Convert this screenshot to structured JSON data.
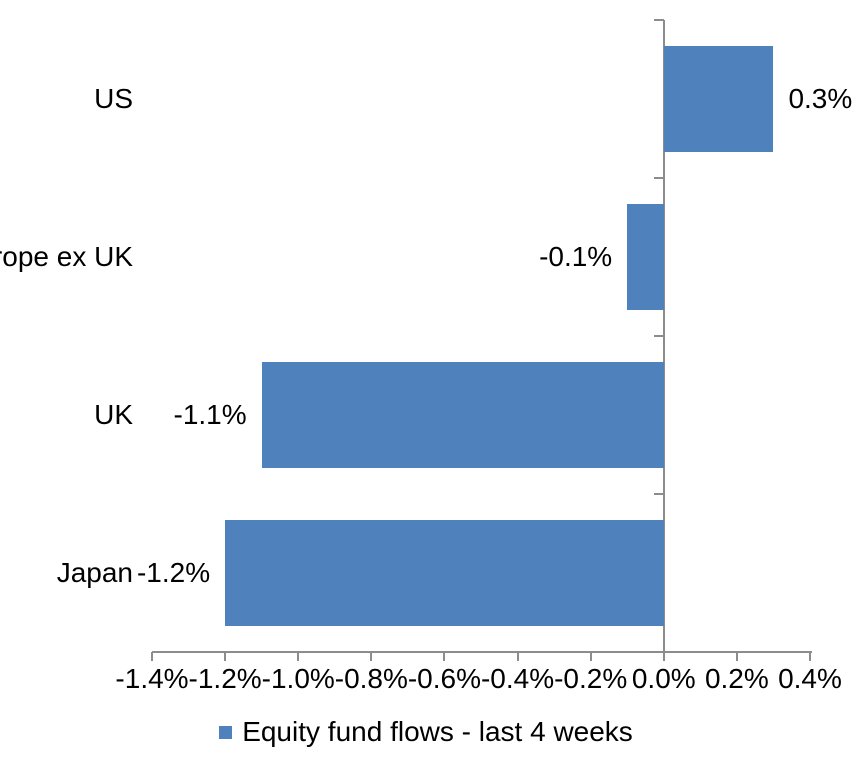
{
  "chart_data": {
    "type": "bar",
    "orientation": "horizontal",
    "title": "",
    "categories": [
      "US",
      "Europe ex UK",
      "UK",
      "Japan"
    ],
    "values": [
      0.3,
      -0.1,
      -1.1,
      -1.2
    ],
    "value_labels": [
      "0.3%",
      "-0.1%",
      "-1.1%",
      "-1.2%"
    ],
    "unit": "percent",
    "xlim": [
      -1.4,
      0.4
    ],
    "x_ticks": [
      -1.4,
      -1.2,
      -1.0,
      -0.8,
      -0.6,
      -0.4,
      -0.2,
      0.0,
      0.2,
      0.4
    ],
    "x_tick_labels": [
      "-1.4%",
      "-1.2%",
      "-1.0%",
      "-0.8%",
      "-0.6%",
      "-0.4%",
      "-0.2%",
      "0.0%",
      "0.2%",
      "0.4%"
    ],
    "grid": false,
    "legend": "Equity fund flows - last 4 weeks",
    "legend_position": "bottom",
    "bar_color": "#4F81BD",
    "axis_color": "#8C8C8C",
    "text_color": "#000000"
  }
}
